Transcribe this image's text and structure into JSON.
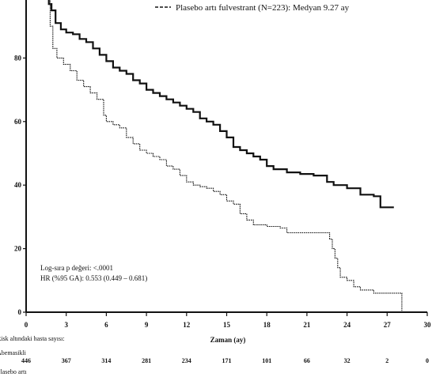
{
  "chart_data": {
    "type": "line",
    "title": "",
    "xlabel": "Zaman (ay)",
    "ylabel": "",
    "xlim": [
      0,
      30
    ],
    "ylim": [
      0,
      100
    ],
    "x_ticks": [
      0,
      3,
      6,
      9,
      12,
      15,
      18,
      21,
      24,
      27,
      30
    ],
    "x_tick_labels": [
      "0",
      "3",
      "6",
      "9",
      "12",
      "15",
      "18",
      "21",
      "24",
      "27",
      "30"
    ],
    "y_ticks": [
      0,
      20,
      40,
      60,
      80
    ],
    "y_tick_labels": [
      "0",
      "20",
      "40",
      "60",
      "80"
    ],
    "grid": false,
    "legend": {
      "placement": "top-right",
      "entries": [
        "Plasebo artı fulvestrant (N=223): Medyan 9.27 ay"
      ]
    },
    "annotations": [
      "Log-sıra p değeri: <.0001",
      "HR (%95 GA): 0.553 (0.449 – 0.681)"
    ],
    "series": [
      {
        "style": "solid",
        "points": [
          [
            0,
            100
          ],
          [
            1.5,
            100
          ],
          [
            1.7,
            97
          ],
          [
            1.9,
            95
          ],
          [
            2.2,
            91
          ],
          [
            2.6,
            89
          ],
          [
            3,
            88
          ],
          [
            3.5,
            87.5
          ],
          [
            4,
            86
          ],
          [
            4.5,
            85
          ],
          [
            5,
            83
          ],
          [
            5.5,
            81
          ],
          [
            6,
            79
          ],
          [
            6.5,
            77
          ],
          [
            7,
            76
          ],
          [
            7.5,
            75
          ],
          [
            8,
            73
          ],
          [
            8.5,
            72
          ],
          [
            9,
            70
          ],
          [
            9.5,
            69
          ],
          [
            10,
            68
          ],
          [
            10.5,
            67
          ],
          [
            11,
            66
          ],
          [
            11.5,
            65
          ],
          [
            12,
            64
          ],
          [
            12.5,
            63
          ],
          [
            13,
            61
          ],
          [
            13.5,
            60
          ],
          [
            14,
            59
          ],
          [
            14.5,
            57
          ],
          [
            15,
            55
          ],
          [
            15.5,
            52
          ],
          [
            16,
            51
          ],
          [
            16.5,
            50
          ],
          [
            17,
            49
          ],
          [
            17.5,
            48
          ],
          [
            18,
            46
          ],
          [
            18.5,
            45
          ],
          [
            19.5,
            44
          ],
          [
            20.5,
            43.5
          ],
          [
            21.5,
            43
          ],
          [
            22.5,
            41
          ],
          [
            23,
            40
          ],
          [
            24,
            39
          ],
          [
            25,
            37
          ],
          [
            26,
            36.5
          ],
          [
            26.5,
            33
          ],
          [
            27.5,
            33
          ]
        ]
      },
      {
        "style": "dotted",
        "points": [
          [
            0,
            100
          ],
          [
            1.5,
            100
          ],
          [
            1.8,
            90
          ],
          [
            2,
            83
          ],
          [
            2.3,
            80
          ],
          [
            2.8,
            78
          ],
          [
            3.3,
            76
          ],
          [
            3.8,
            73
          ],
          [
            4.3,
            71
          ],
          [
            4.8,
            69
          ],
          [
            5.3,
            67
          ],
          [
            5.8,
            62
          ],
          [
            6,
            60
          ],
          [
            6.5,
            59
          ],
          [
            7,
            58
          ],
          [
            7.5,
            55
          ],
          [
            8,
            53
          ],
          [
            8.5,
            51
          ],
          [
            9,
            50
          ],
          [
            9.5,
            49
          ],
          [
            10,
            48
          ],
          [
            10.5,
            46
          ],
          [
            11,
            45
          ],
          [
            11.5,
            43
          ],
          [
            12,
            41
          ],
          [
            12.5,
            40
          ],
          [
            13,
            39.5
          ],
          [
            13.5,
            39
          ],
          [
            14,
            38
          ],
          [
            14.5,
            37
          ],
          [
            15,
            35
          ],
          [
            15.5,
            34
          ],
          [
            16,
            31
          ],
          [
            16.5,
            29
          ],
          [
            17,
            27.5
          ],
          [
            18,
            27
          ],
          [
            19,
            26.5
          ],
          [
            19.5,
            25
          ],
          [
            21,
            25
          ],
          [
            22.5,
            25
          ],
          [
            22.7,
            23
          ],
          [
            22.9,
            20
          ],
          [
            23.1,
            17
          ],
          [
            23.3,
            14
          ],
          [
            23.5,
            11
          ],
          [
            24,
            10
          ],
          [
            24.5,
            8
          ],
          [
            25,
            7
          ],
          [
            26,
            6
          ],
          [
            27,
            6
          ],
          [
            28,
            6
          ],
          [
            28.1,
            0
          ]
        ]
      }
    ],
    "risk_table": {
      "title": "Risk altındaki hasta sayısı:",
      "time_points": [
        0,
        3,
        6,
        9,
        12,
        15,
        18,
        21,
        24,
        27,
        30
      ],
      "rows": [
        {
          "label": "Abemasikli",
          "values": [
            "446",
            "367",
            "314",
            "281",
            "234",
            "171",
            "101",
            "66",
            "32",
            "2",
            "0"
          ]
        },
        {
          "label": "Plasebo artı",
          "values": []
        }
      ]
    }
  }
}
